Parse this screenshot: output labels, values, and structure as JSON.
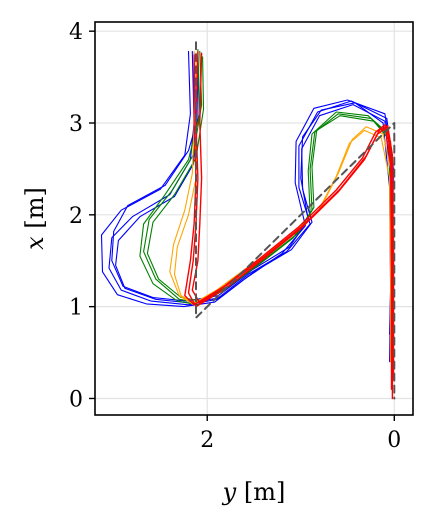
{
  "chart_data": {
    "type": "line",
    "title": "",
    "xlabel": {
      "var": "y",
      "unit": " [m]"
    },
    "ylabel": {
      "var": "x",
      "unit": " [m]"
    },
    "xlim": [
      3.2,
      -0.2
    ],
    "ylim": [
      -0.18,
      4.1
    ],
    "xticks": [
      2,
      0
    ],
    "yticks": [
      0,
      1,
      2,
      3,
      4
    ],
    "grid": true,
    "legend": "none",
    "series": [
      {
        "color": "#555555",
        "style": "dashed",
        "width": 2,
        "runs": [
          [
            [
              2.12,
              3.88
            ],
            [
              2.12,
              0.88
            ],
            [
              0.0,
              3.0
            ],
            [
              0.0,
              0.0
            ]
          ]
        ]
      },
      {
        "color": "#0000ff",
        "style": "solid",
        "width": 1.1,
        "runs": [
          [
            [
              2.16,
              3.78
            ],
            [
              2.14,
              3.0
            ],
            [
              2.18,
              2.6
            ],
            [
              2.4,
              2.22
            ],
            [
              2.8,
              1.98
            ],
            [
              3.02,
              1.75
            ],
            [
              3.05,
              1.42
            ],
            [
              2.92,
              1.18
            ],
            [
              2.6,
              1.06
            ],
            [
              2.2,
              1.02
            ],
            [
              1.9,
              1.08
            ],
            [
              1.55,
              1.36
            ],
            [
              1.15,
              1.6
            ],
            [
              0.9,
              1.9
            ],
            [
              1.02,
              2.3
            ],
            [
              1.02,
              2.75
            ],
            [
              0.82,
              3.12
            ],
            [
              0.46,
              3.24
            ],
            [
              0.08,
              3.05
            ],
            [
              0.01,
              2.5
            ],
            [
              0.02,
              1.5
            ],
            [
              0.03,
              0.6
            ]
          ],
          [
            [
              2.2,
              3.78
            ],
            [
              2.18,
              3.1
            ],
            [
              2.24,
              2.65
            ],
            [
              2.5,
              2.28
            ],
            [
              2.92,
              2.05
            ],
            [
              3.13,
              1.78
            ],
            [
              3.12,
              1.38
            ],
            [
              2.96,
              1.13
            ],
            [
              2.65,
              1.03
            ],
            [
              2.25,
              1.0
            ],
            [
              1.92,
              1.05
            ],
            [
              1.6,
              1.3
            ],
            [
              1.2,
              1.58
            ],
            [
              0.95,
              1.88
            ],
            [
              1.06,
              2.35
            ],
            [
              1.05,
              2.8
            ],
            [
              0.86,
              3.16
            ],
            [
              0.5,
              3.25
            ],
            [
              0.1,
              3.1
            ],
            [
              0.03,
              2.6
            ],
            [
              0.03,
              1.6
            ],
            [
              0.05,
              0.7
            ]
          ],
          [
            [
              2.14,
              3.76
            ],
            [
              2.12,
              2.9
            ],
            [
              2.15,
              2.55
            ],
            [
              2.35,
              2.2
            ],
            [
              2.72,
              1.98
            ],
            [
              2.95,
              1.72
            ],
            [
              2.98,
              1.45
            ],
            [
              2.88,
              1.2
            ],
            [
              2.55,
              1.08
            ],
            [
              2.18,
              1.04
            ],
            [
              1.86,
              1.1
            ],
            [
              1.5,
              1.38
            ],
            [
              1.1,
              1.62
            ],
            [
              0.88,
              1.92
            ],
            [
              0.98,
              2.28
            ],
            [
              0.99,
              2.72
            ],
            [
              0.8,
              3.08
            ],
            [
              0.44,
              3.2
            ],
            [
              0.1,
              3.02
            ],
            [
              0.04,
              2.4
            ],
            [
              0.02,
              1.4
            ],
            [
              0.04,
              0.5
            ]
          ],
          [
            [
              2.1,
              3.72
            ],
            [
              2.1,
              3.05
            ],
            [
              2.2,
              2.7
            ],
            [
              2.45,
              2.32
            ],
            [
              2.85,
              2.1
            ],
            [
              3.0,
              1.82
            ],
            [
              3.02,
              1.5
            ],
            [
              2.9,
              1.22
            ],
            [
              2.58,
              1.1
            ],
            [
              2.22,
              1.06
            ],
            [
              1.88,
              1.12
            ],
            [
              1.52,
              1.4
            ],
            [
              1.12,
              1.65
            ],
            [
              0.92,
              1.95
            ],
            [
              1.0,
              2.4
            ],
            [
              0.98,
              2.85
            ],
            [
              0.78,
              3.14
            ],
            [
              0.42,
              3.22
            ],
            [
              0.12,
              3.0
            ],
            [
              0.05,
              2.3
            ],
            [
              0.04,
              1.2
            ],
            [
              0.05,
              0.4
            ]
          ]
        ]
      },
      {
        "color": "#008000",
        "style": "solid",
        "width": 1.1,
        "runs": [
          [
            [
              2.08,
              3.78
            ],
            [
              2.06,
              3.2
            ],
            [
              2.15,
              2.65
            ],
            [
              2.38,
              2.26
            ],
            [
              2.62,
              1.95
            ],
            [
              2.68,
              1.6
            ],
            [
              2.55,
              1.3
            ],
            [
              2.3,
              1.08
            ],
            [
              2.08,
              1.04
            ],
            [
              1.8,
              1.2
            ],
            [
              1.4,
              1.5
            ],
            [
              1.05,
              1.78
            ],
            [
              0.88,
              2.05
            ],
            [
              0.9,
              2.5
            ],
            [
              0.85,
              2.9
            ],
            [
              0.6,
              3.1
            ],
            [
              0.25,
              3.05
            ],
            [
              0.05,
              2.85
            ],
            [
              0.03,
              2.2
            ],
            [
              0.03,
              1.2
            ]
          ],
          [
            [
              2.1,
              3.8
            ],
            [
              2.08,
              3.1
            ],
            [
              2.2,
              2.6
            ],
            [
              2.45,
              2.22
            ],
            [
              2.68,
              1.9
            ],
            [
              2.72,
              1.55
            ],
            [
              2.58,
              1.25
            ],
            [
              2.32,
              1.06
            ],
            [
              2.1,
              1.02
            ],
            [
              1.82,
              1.18
            ],
            [
              1.42,
              1.48
            ],
            [
              1.08,
              1.75
            ],
            [
              0.9,
              2.02
            ],
            [
              0.92,
              2.48
            ],
            [
              0.88,
              2.88
            ],
            [
              0.62,
              3.12
            ],
            [
              0.28,
              3.08
            ],
            [
              0.06,
              2.88
            ],
            [
              0.04,
              2.1
            ],
            [
              0.04,
              1.0
            ]
          ],
          [
            [
              2.05,
              3.72
            ],
            [
              2.04,
              3.15
            ],
            [
              2.12,
              2.62
            ],
            [
              2.35,
              2.22
            ],
            [
              2.58,
              1.92
            ],
            [
              2.64,
              1.58
            ],
            [
              2.52,
              1.3
            ],
            [
              2.28,
              1.1
            ],
            [
              2.06,
              1.06
            ],
            [
              1.78,
              1.22
            ],
            [
              1.38,
              1.52
            ],
            [
              1.03,
              1.8
            ],
            [
              0.86,
              2.08
            ],
            [
              0.88,
              2.52
            ],
            [
              0.83,
              2.92
            ],
            [
              0.58,
              3.08
            ],
            [
              0.22,
              3.02
            ],
            [
              0.04,
              2.8
            ],
            [
              0.02,
              2.0
            ],
            [
              0.03,
              1.1
            ]
          ]
        ]
      },
      {
        "color": "#ffa500",
        "style": "solid",
        "width": 1.1,
        "runs": [
          [
            [
              2.12,
              3.76
            ],
            [
              2.12,
              3.0
            ],
            [
              2.12,
              2.4
            ],
            [
              2.2,
              2.0
            ],
            [
              2.32,
              1.65
            ],
            [
              2.35,
              1.35
            ],
            [
              2.28,
              1.12
            ],
            [
              2.14,
              1.04
            ],
            [
              1.9,
              1.18
            ],
            [
              1.5,
              1.48
            ],
            [
              1.1,
              1.78
            ],
            [
              0.8,
              2.05
            ],
            [
              0.6,
              2.45
            ],
            [
              0.45,
              2.82
            ],
            [
              0.3,
              2.96
            ],
            [
              0.12,
              2.88
            ],
            [
              0.04,
              2.5
            ],
            [
              0.03,
              1.5
            ],
            [
              0.03,
              0.5
            ]
          ],
          [
            [
              2.14,
              3.78
            ],
            [
              2.14,
              3.0
            ],
            [
              2.16,
              2.45
            ],
            [
              2.24,
              2.05
            ],
            [
              2.36,
              1.68
            ],
            [
              2.4,
              1.38
            ],
            [
              2.3,
              1.12
            ],
            [
              2.16,
              1.03
            ],
            [
              1.92,
              1.16
            ],
            [
              1.52,
              1.46
            ],
            [
              1.12,
              1.76
            ],
            [
              0.82,
              2.03
            ],
            [
              0.62,
              2.42
            ],
            [
              0.48,
              2.78
            ],
            [
              0.32,
              2.92
            ],
            [
              0.14,
              2.84
            ],
            [
              0.05,
              2.4
            ],
            [
              0.04,
              1.3
            ],
            [
              0.04,
              0.4
            ]
          ]
        ]
      },
      {
        "color": "#ff0000",
        "style": "solid",
        "width": 1.4,
        "runs": [
          [
            [
              2.1,
              3.78
            ],
            [
              2.12,
              3.0
            ],
            [
              2.1,
              2.4
            ],
            [
              2.12,
              1.9
            ],
            [
              2.15,
              1.5
            ],
            [
              2.2,
              1.15
            ],
            [
              2.12,
              1.0
            ],
            [
              1.8,
              1.2
            ],
            [
              1.4,
              1.52
            ],
            [
              1.0,
              1.85
            ],
            [
              0.6,
              2.25
            ],
            [
              0.32,
              2.6
            ],
            [
              0.18,
              2.88
            ],
            [
              0.08,
              2.95
            ],
            [
              0.03,
              2.6
            ],
            [
              0.02,
              1.5
            ],
            [
              0.02,
              0.0
            ]
          ],
          [
            [
              2.14,
              3.74
            ],
            [
              2.14,
              3.0
            ],
            [
              2.12,
              2.4
            ],
            [
              2.14,
              1.9
            ],
            [
              2.18,
              1.5
            ],
            [
              2.24,
              1.12
            ],
            [
              2.14,
              1.02
            ],
            [
              1.82,
              1.22
            ],
            [
              1.42,
              1.54
            ],
            [
              1.02,
              1.87
            ],
            [
              0.62,
              2.27
            ],
            [
              0.34,
              2.62
            ],
            [
              0.2,
              2.9
            ],
            [
              0.1,
              2.98
            ],
            [
              0.04,
              2.55
            ],
            [
              0.03,
              1.4
            ],
            [
              0.03,
              0.1
            ]
          ],
          [
            [
              2.06,
              3.76
            ],
            [
              2.08,
              3.0
            ],
            [
              2.06,
              2.4
            ],
            [
              2.08,
              1.9
            ],
            [
              2.1,
              1.5
            ],
            [
              2.16,
              1.18
            ],
            [
              2.08,
              1.04
            ],
            [
              1.78,
              1.24
            ],
            [
              1.38,
              1.55
            ],
            [
              0.98,
              1.88
            ],
            [
              0.58,
              2.28
            ],
            [
              0.3,
              2.64
            ],
            [
              0.16,
              2.92
            ],
            [
              0.07,
              2.97
            ],
            [
              0.02,
              2.65
            ],
            [
              0.01,
              1.6
            ],
            [
              0.01,
              0.2
            ]
          ]
        ]
      }
    ]
  }
}
